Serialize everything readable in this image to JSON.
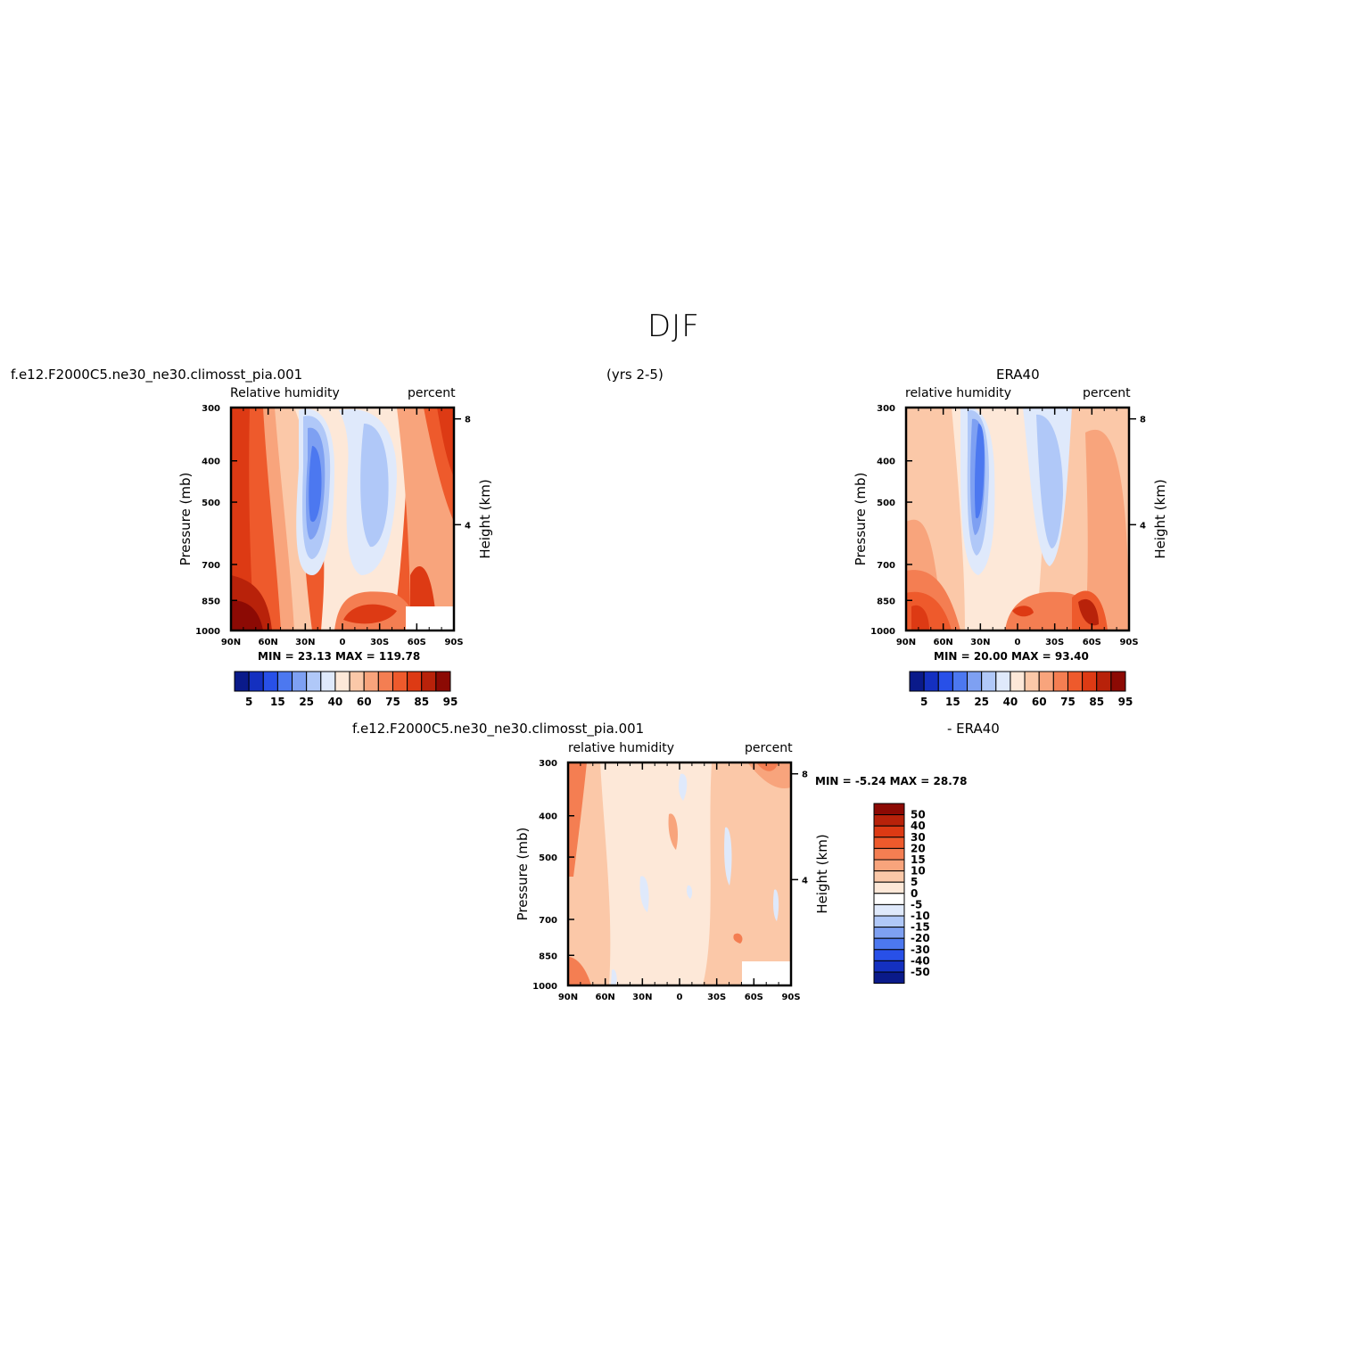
{
  "page_title": "DJF",
  "panels": {
    "model": {
      "case": "f.e12.F2000C5.ne30_ne30.climosst_pia.001",
      "years": "(yrs 2-5)",
      "var_label": "Relative humidity",
      "units": "percent",
      "ylabel_left": "Pressure (mb)",
      "ylabel_right": "Height (km)",
      "stats": "MIN =   23.13   MAX = 119.78"
    },
    "obs": {
      "case": "ERA40",
      "var_label": "relative humidity",
      "units": "percent",
      "ylabel_left": "Pressure (mb)",
      "ylabel_right": "Height (km)",
      "stats": "MIN =   20.00   MAX =   93.40"
    },
    "diff": {
      "case": "f.e12.F2000C5.ne30_ne30.climosst_pia.001",
      "case2": "- ERA40",
      "var_label": "relative humidity",
      "units": "percent",
      "ylabel_left": "Pressure (mb)",
      "ylabel_right": "Height (km)",
      "stats": "MIN =   -5.24   MAX =   28.78"
    }
  },
  "chart_data": [
    {
      "type": "heatmap",
      "title": "Relative humidity",
      "xlabel": "",
      "ylabel": "Pressure (mb)",
      "x_ticks": [
        "90N",
        "60N",
        "30N",
        "0",
        "30S",
        "60S",
        "90S"
      ],
      "y_ticks": [
        300,
        400,
        500,
        700,
        850,
        1000
      ],
      "y2_ticks": [
        4,
        8
      ],
      "y2_label": "Height (km)",
      "colorbar_levels": [
        5,
        15,
        25,
        40,
        60,
        75,
        85,
        95
      ],
      "colors": [
        "#0a1a8a",
        "#1430c0",
        "#2850e8",
        "#4c78f0",
        "#7ea0f2",
        "#b0c8f8",
        "#dfe9fb",
        "#fde8d8",
        "#fbc8a8",
        "#f8a47c",
        "#f47e52",
        "#ee5a2c",
        "#dd3a14",
        "#b8220a",
        "#8c0a04"
      ],
      "min": 23.13,
      "max": 119.78
    },
    {
      "type": "heatmap",
      "title": "relative humidity",
      "xlabel": "",
      "ylabel": "Pressure (mb)",
      "x_ticks": [
        "90N",
        "60N",
        "30N",
        "0",
        "30S",
        "60S",
        "90S"
      ],
      "y_ticks": [
        300,
        400,
        500,
        700,
        850,
        1000
      ],
      "y2_ticks": [
        4,
        8
      ],
      "y2_label": "Height (km)",
      "colorbar_levels": [
        5,
        15,
        25,
        40,
        60,
        75,
        85,
        95
      ],
      "colors": [
        "#0a1a8a",
        "#1430c0",
        "#2850e8",
        "#4c78f0",
        "#7ea0f2",
        "#b0c8f8",
        "#dfe9fb",
        "#fde8d8",
        "#fbc8a8",
        "#f8a47c",
        "#f47e52",
        "#ee5a2c",
        "#dd3a14",
        "#b8220a",
        "#8c0a04"
      ],
      "min": 20.0,
      "max": 93.4
    },
    {
      "type": "heatmap",
      "title": "relative humidity",
      "xlabel": "",
      "ylabel": "Pressure (mb)",
      "x_ticks": [
        "90N",
        "60N",
        "30N",
        "0",
        "30S",
        "60S",
        "90S"
      ],
      "y_ticks": [
        300,
        400,
        500,
        700,
        850,
        1000
      ],
      "y2_ticks": [
        4,
        8
      ],
      "y2_label": "Height (km)",
      "colorbar_levels": [
        50,
        40,
        30,
        20,
        15,
        10,
        5,
        0,
        -5,
        -10,
        -15,
        -20,
        -30,
        -40,
        -50
      ],
      "colors": [
        "#8c0a04",
        "#b8220a",
        "#dd3a14",
        "#ee5a2c",
        "#f47e52",
        "#f8a47c",
        "#fbc8a8",
        "#fde8d8",
        "#dfe9fb",
        "#b0c8f8",
        "#7ea0f2",
        "#4c78f0",
        "#2850e8",
        "#1430c0",
        "#0a1a8a"
      ],
      "min": -5.24,
      "max": 28.78
    }
  ]
}
